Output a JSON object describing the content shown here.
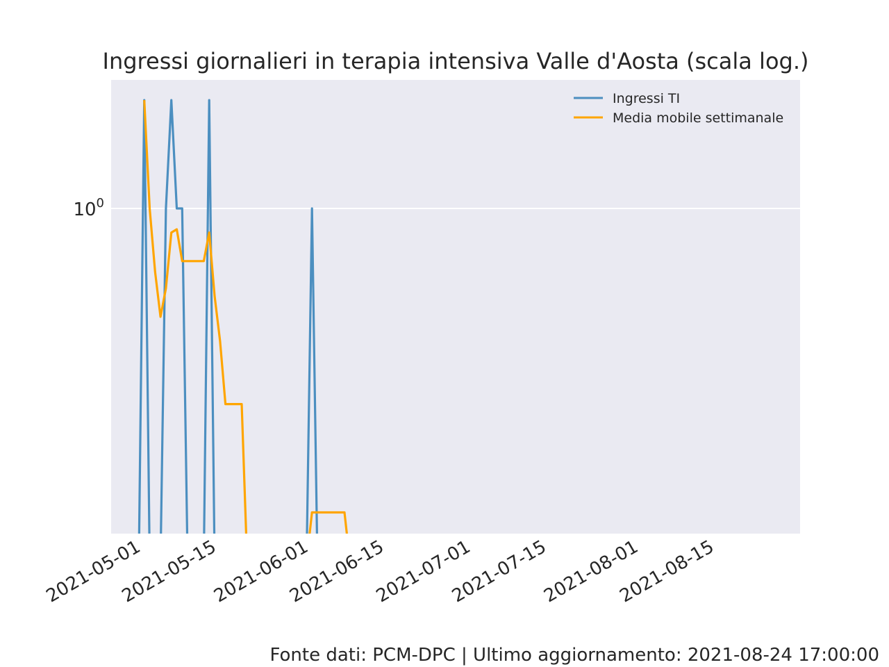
{
  "chart_data": {
    "type": "line",
    "title": "Ingressi giornalieri in terapia intensiva Valle d'Aosta (scala log.)",
    "xlabel": "",
    "ylabel": "",
    "y_scale": "log",
    "grid": true,
    "legend_position": "top-right",
    "x_ticks": [
      "2021-05-01",
      "2021-05-15",
      "2021-06-01",
      "2021-06-15",
      "2021-07-01",
      "2021-07-15",
      "2021-08-01",
      "2021-08-15"
    ],
    "y_ticks": [
      {
        "value": 1,
        "label_base": "10",
        "label_exp": "0"
      }
    ],
    "series": [
      {
        "name": "Ingressi TI",
        "color": "#4c8fc0",
        "points": [
          {
            "x": "2021-05-01",
            "y": 0
          },
          {
            "x": "2021-05-02",
            "y": 2
          },
          {
            "x": "2021-05-03",
            "y": 0
          },
          {
            "x": "2021-05-04",
            "y": 0
          },
          {
            "x": "2021-05-05",
            "y": 0
          },
          {
            "x": "2021-05-06",
            "y": 1
          },
          {
            "x": "2021-05-07",
            "y": 2
          },
          {
            "x": "2021-05-08",
            "y": 1
          },
          {
            "x": "2021-05-09",
            "y": 1
          },
          {
            "x": "2021-05-10",
            "y": 0
          },
          {
            "x": "2021-05-11",
            "y": 0
          },
          {
            "x": "2021-05-12",
            "y": 0
          },
          {
            "x": "2021-05-13",
            "y": 0
          },
          {
            "x": "2021-05-14",
            "y": 2
          },
          {
            "x": "2021-05-15",
            "y": 0
          },
          {
            "x": "2021-06-01",
            "y": 0
          },
          {
            "x": "2021-06-02",
            "y": 1
          },
          {
            "x": "2021-06-03",
            "y": 0
          }
        ]
      },
      {
        "name": "Media mobile settimanale",
        "color": "#ffa500",
        "points": [
          {
            "x": "2021-05-02",
            "y": 2.0
          },
          {
            "x": "2021-05-03",
            "y": 1.0
          },
          {
            "x": "2021-05-04",
            "y": 0.667
          },
          {
            "x": "2021-05-05",
            "y": 0.5
          },
          {
            "x": "2021-05-06",
            "y": 0.6
          },
          {
            "x": "2021-05-07",
            "y": 0.857
          },
          {
            "x": "2021-05-08",
            "y": 0.875
          },
          {
            "x": "2021-05-09",
            "y": 0.714
          },
          {
            "x": "2021-05-10",
            "y": 0.714
          },
          {
            "x": "2021-05-11",
            "y": 0.714
          },
          {
            "x": "2021-05-12",
            "y": 0.714
          },
          {
            "x": "2021-05-13",
            "y": 0.714
          },
          {
            "x": "2021-05-14",
            "y": 0.857
          },
          {
            "x": "2021-05-15",
            "y": 0.571
          },
          {
            "x": "2021-05-16",
            "y": 0.429
          },
          {
            "x": "2021-05-17",
            "y": 0.286
          },
          {
            "x": "2021-05-18",
            "y": 0.286
          },
          {
            "x": "2021-05-19",
            "y": 0.286
          },
          {
            "x": "2021-05-20",
            "y": 0.286
          },
          {
            "x": "2021-05-21",
            "y": 0
          },
          {
            "x": "2021-06-01",
            "y": 0
          },
          {
            "x": "2021-06-02",
            "y": 0.143
          },
          {
            "x": "2021-06-03",
            "y": 0.143
          },
          {
            "x": "2021-06-04",
            "y": 0.143
          },
          {
            "x": "2021-06-05",
            "y": 0.143
          },
          {
            "x": "2021-06-06",
            "y": 0.143
          },
          {
            "x": "2021-06-07",
            "y": 0.143
          },
          {
            "x": "2021-06-08",
            "y": 0.143
          },
          {
            "x": "2021-06-09",
            "y": 0
          }
        ]
      }
    ]
  },
  "footer": "Fonte dati: PCM-DPC | Ultimo aggiornamento: 2021-08-24 17:00:00"
}
